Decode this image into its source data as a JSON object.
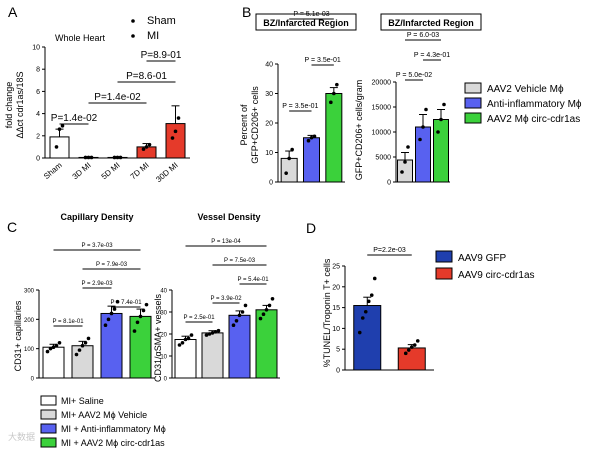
{
  "chart_data": [
    {
      "panel_label": "A",
      "type": "bar",
      "title": "Whole Heart",
      "ylabel_lines": [
        "fold change",
        "ΔΔct cdr1as/18S"
      ],
      "ylim": [
        0,
        10
      ],
      "yticks": [
        "0",
        "2",
        "4",
        "6",
        "8",
        "10"
      ],
      "categories": [
        "Sham",
        "3D MI",
        "5D MI",
        "7D MI",
        "30D MI"
      ],
      "values": [
        1.9,
        0.05,
        0.05,
        1.0,
        3.1
      ],
      "errors": [
        0.7,
        0.05,
        0.05,
        0.3,
        1.6
      ],
      "points": [
        [
          1.0,
          2.6,
          2.9
        ],
        [
          0.05,
          0.05,
          0.05
        ],
        [
          0.05,
          0.05,
          0.05
        ],
        [
          0.8,
          1.0,
          1.2
        ],
        [
          1.8,
          2.4,
          3.6
        ]
      ],
      "bar_colors": [
        "#ffffff",
        "#ffffff",
        "#ffffff",
        "#e53a2a",
        "#e53a2a"
      ],
      "legend": [
        "Sham",
        "MI"
      ],
      "comparisons": [
        {
          "label": "P=1.4e-02",
          "from": 0,
          "to": 1,
          "level": 1
        },
        {
          "label": "P=1.4e-02",
          "from": 1,
          "to": 3,
          "level": 2
        },
        {
          "label": "P=8.6-01",
          "from": 2,
          "to": 4,
          "level": 3
        },
        {
          "label": "P=8.9-01",
          "from": 3,
          "to": 4,
          "level": 4
        }
      ]
    },
    {
      "panel_label": "B",
      "type": "bar",
      "title": "BZ/Infarcted Region",
      "ylabel_lines": [
        "Percent of",
        "GFP+CD206+ cells"
      ],
      "ylim": [
        0,
        40
      ],
      "yticks": [
        "0",
        "10",
        "20",
        "30",
        "40"
      ],
      "categories": [
        "AAV2 Vehicle Mϕ",
        "Anti-inflammatory Mϕ",
        "AAV2 Mϕ circ-cdr1as"
      ],
      "values": [
        8,
        15,
        30
      ],
      "errors": [
        2.5,
        0.8,
        2.0
      ],
      "points": [
        [
          3,
          8,
          11
        ],
        [
          14,
          15,
          15.5
        ],
        [
          27,
          30,
          33
        ]
      ],
      "bar_colors": [
        "#d9d9d9",
        "#5861f0",
        "#3bd13b"
      ],
      "comparisons": [
        {
          "label": "P = 3.5e-01",
          "from": 0,
          "to": 1,
          "level": 1
        },
        {
          "label": "P = 3.5e-01",
          "from": 1,
          "to": 2,
          "level": 2
        },
        {
          "label": "P = 5.1e-03",
          "from": 0,
          "to": 2,
          "level": 3
        }
      ]
    },
    {
      "panel_label": "",
      "type": "bar",
      "title": "BZ/Infarcted Region",
      "ylabel_lines": [
        "GFP+CD206+ cells/gram"
      ],
      "ylim": [
        0,
        20000
      ],
      "yticks": [
        "0",
        "5000",
        "10000",
        "15000",
        "20000"
      ],
      "categories": [
        "AAV2 Vehicle Mϕ",
        "Anti-inflammatory Mϕ",
        "AAV2 Mϕ circ-cdr1as"
      ],
      "values": [
        4400,
        11000,
        12500
      ],
      "errors": [
        1500,
        2500,
        2000
      ],
      "points": [
        [
          2000,
          4000,
          7000
        ],
        [
          8500,
          11000,
          14500
        ],
        [
          10000,
          12500,
          15500
        ]
      ],
      "bar_colors": [
        "#d9d9d9",
        "#5861f0",
        "#3bd13b"
      ],
      "comparisons": [
        {
          "label": "P = 5.0e-02",
          "from": 0,
          "to": 1,
          "level": 1
        },
        {
          "label": "P = 4.3e-01",
          "from": 1,
          "to": 2,
          "level": 2
        },
        {
          "label": "P = 6.0-03",
          "from": 0,
          "to": 2,
          "level": 3
        }
      ],
      "legend": [
        "AAV2 Vehicle Mϕ",
        "Anti-inflammatory Mϕ",
        "AAV2 Mϕ circ-cdr1as"
      ]
    },
    {
      "panel_label": "C",
      "type": "bar",
      "title": "Capillary Density",
      "ylabel_lines": [
        "CD31+ capillaries"
      ],
      "ylim": [
        0,
        300
      ],
      "yticks": [
        "0",
        "100",
        "200",
        "300"
      ],
      "categories": [
        "MI+ Saline",
        "MI+ AAV2 Mϕ Vehicle",
        "MI + Anti-inflammatory Mϕ",
        "MI + AAV2 Mϕ circ-cdr1as"
      ],
      "values": [
        105,
        110,
        220,
        210
      ],
      "errors": [
        10,
        15,
        25,
        25
      ],
      "points": [
        [
          90,
          100,
          105,
          110,
          120
        ],
        [
          80,
          95,
          110,
          120,
          135
        ],
        [
          180,
          200,
          220,
          235,
          260
        ],
        [
          160,
          190,
          210,
          230,
          250
        ]
      ],
      "bar_colors": [
        "#ffffff",
        "#d9d9d9",
        "#5861f0",
        "#3bd13b"
      ],
      "comparisons": [
        {
          "label": "P = 8.1e-01",
          "from": 0,
          "to": 1,
          "level": 1
        },
        {
          "label": "P = 7.4e-01",
          "from": 2,
          "to": 3,
          "level": 2
        },
        {
          "label": "P = 2.9e-03",
          "from": 1,
          "to": 2,
          "level": 3
        },
        {
          "label": "P = 7.9e-03",
          "from": 1,
          "to": 3,
          "level": 4
        },
        {
          "label": "P = 3.7e-03",
          "from": 0,
          "to": 3,
          "level": 5
        }
      ],
      "legend": [
        "MI+ Saline",
        "MI+ AAV2 Mϕ Vehicle",
        "MI + Anti-inflammatory Mϕ",
        "MI + AAV2 Mϕ circ-cdr1as"
      ]
    },
    {
      "panel_label": "",
      "type": "bar",
      "title": "Vessel Density",
      "ylabel_lines": [
        "CD31/αSMA+ vessels"
      ],
      "ylim": [
        0,
        40
      ],
      "yticks": [
        "0",
        "10",
        "20",
        "30",
        "40"
      ],
      "categories": [
        "MI+ Saline",
        "MI+ AAV2 Mϕ Vehicle",
        "MI + Anti-inflammatory Mϕ",
        "MI + AAV2 Mϕ circ-cdr1as"
      ],
      "values": [
        17.5,
        20.5,
        28.5,
        31
      ],
      "errors": [
        1.5,
        1.0,
        2.0,
        2.0
      ],
      "points": [
        [
          15,
          16,
          17.5,
          18,
          19.5
        ],
        [
          19.5,
          20,
          20.5,
          21,
          21.5
        ],
        [
          24,
          26,
          28.5,
          30,
          33
        ],
        [
          27,
          29,
          31,
          33,
          36
        ]
      ],
      "bar_colors": [
        "#ffffff",
        "#d9d9d9",
        "#5861f0",
        "#3bd13b"
      ],
      "comparisons": [
        {
          "label": "P = 2.5e-01",
          "from": 0,
          "to": 1,
          "level": 1
        },
        {
          "label": "P = 3.9e-02",
          "from": 1,
          "to": 2,
          "level": 2
        },
        {
          "label": "P = 5.4e-01",
          "from": 2,
          "to": 3,
          "level": 3
        },
        {
          "label": "P = 7.5e-03",
          "from": 1,
          "to": 3,
          "level": 4
        },
        {
          "label": "P = 13e-04",
          "from": 0,
          "to": 3,
          "level": 5
        }
      ]
    },
    {
      "panel_label": "D",
      "type": "bar",
      "title": "",
      "ylabel_lines": [
        "%TUNEL/Troponin T+ cells"
      ],
      "ylim": [
        0,
        25
      ],
      "yticks": [
        "0",
        "5",
        "10",
        "15",
        "20",
        "25"
      ],
      "categories": [
        "AAV9 GFP",
        "AAV9 circ-cdr1as"
      ],
      "values": [
        15.5,
        5.3
      ],
      "errors": [
        2.0,
        0.8
      ],
      "points": [
        [
          9,
          12.5,
          14,
          16.5,
          18,
          22
        ],
        [
          4,
          4.8,
          5.5,
          6,
          7
        ]
      ],
      "bar_colors": [
        "#1f3fae",
        "#e53a2a"
      ],
      "comparisons": [
        {
          "label": "P=2.2e-03",
          "from": 0,
          "to": 1,
          "level": 1
        }
      ],
      "legend": [
        "AAV9 GFP",
        "AAV9 circ-cdr1as"
      ]
    }
  ],
  "watermark": "大数据"
}
